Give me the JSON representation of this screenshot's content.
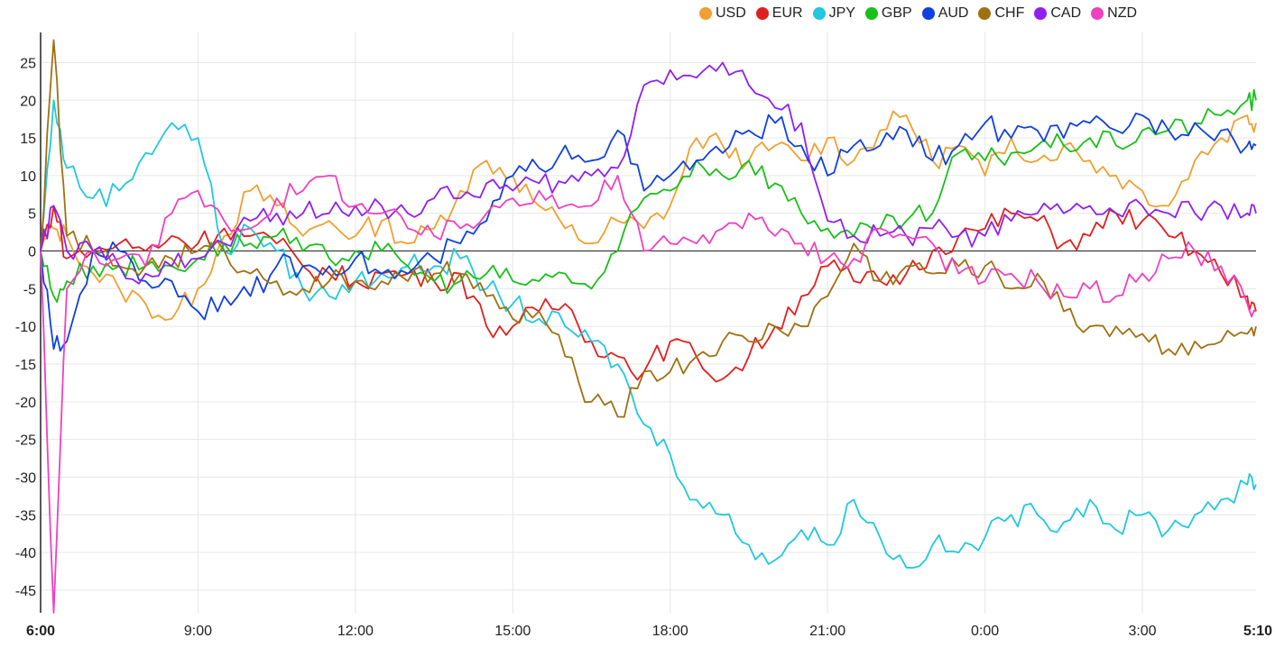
{
  "chart_data": {
    "type": "line",
    "title": "",
    "xlabel": "",
    "ylabel": "",
    "ylim": [
      -48,
      29
    ],
    "grid": true,
    "legend_position": "top-right",
    "y_ticks": [
      25,
      20,
      15,
      10,
      5,
      0,
      -5,
      -10,
      -15,
      -20,
      -25,
      -30,
      -35,
      -40,
      -45
    ],
    "x_ticks": [
      {
        "label": "6:00",
        "hours": 0,
        "bold": true
      },
      {
        "label": "9:00",
        "hours": 3,
        "bold": false
      },
      {
        "label": "12:00",
        "hours": 6,
        "bold": false
      },
      {
        "label": "15:00",
        "hours": 9,
        "bold": false
      },
      {
        "label": "18:00",
        "hours": 12,
        "bold": false
      },
      {
        "label": "21:00",
        "hours": 15,
        "bold": false
      },
      {
        "label": "0:00",
        "hours": 18,
        "bold": false
      },
      {
        "label": "3:00",
        "hours": 21,
        "bold": false
      },
      {
        "label": "5:10",
        "hours": 23.1667,
        "bold": true
      }
    ],
    "x_hours": [
      0,
      0.25,
      0.5,
      1,
      1.5,
      2,
      2.5,
      3,
      3.5,
      4,
      4.5,
      5,
      5.5,
      6,
      6.5,
      7,
      7.5,
      8,
      8.5,
      9,
      9.5,
      10,
      10.5,
      11,
      11.5,
      12,
      12.5,
      13,
      13.5,
      14,
      14.5,
      15,
      15.5,
      16,
      16.5,
      17,
      17.5,
      18,
      18.5,
      19,
      19.5,
      20,
      20.5,
      21,
      21.5,
      22,
      22.5,
      23,
      23.1667
    ],
    "series": [
      {
        "name": "USD",
        "color": "#f0a030",
        "values": [
          0,
          3,
          2,
          -3,
          -5,
          -7,
          -9,
          -5,
          2,
          8,
          6,
          2,
          4,
          2,
          4,
          1,
          3,
          8,
          12,
          10,
          6,
          3,
          1,
          4,
          3,
          6,
          15,
          14,
          12,
          14,
          12,
          15,
          12,
          16,
          18,
          12,
          14,
          10,
          15,
          12,
          14,
          12,
          10,
          8,
          6,
          12,
          15,
          18,
          17
        ]
      },
      {
        "name": "EUR",
        "color": "#e02020",
        "values": [
          0,
          6,
          -1,
          0,
          1,
          0,
          2,
          1,
          3,
          2,
          1,
          -2,
          -3,
          -4,
          -3,
          -3,
          -4,
          -3,
          -10,
          -10,
          -8,
          -7,
          -12,
          -14,
          -16,
          -12,
          -14,
          -17,
          -14,
          -10,
          -6,
          -2,
          -4,
          -4,
          -3,
          0,
          2,
          3,
          5,
          4,
          1,
          2,
          5,
          4,
          2,
          0,
          -3,
          -6,
          -8
        ]
      },
      {
        "name": "JPY",
        "color": "#20c8e0",
        "values": [
          0,
          20,
          11,
          7,
          8,
          13,
          17,
          15,
          0,
          3,
          0,
          -5,
          -6,
          -4,
          -3,
          -2,
          -2,
          -1,
          -5,
          -7,
          -9,
          -10,
          -12,
          -15,
          -23,
          -27,
          -33,
          -35,
          -39,
          -41,
          -37,
          -39,
          -33,
          -38,
          -42,
          -39,
          -40,
          -38,
          -35,
          -35,
          -36,
          -33,
          -37,
          -35,
          -37,
          -35,
          -33,
          -31,
          -31
        ]
      },
      {
        "name": "GBP",
        "color": "#18c018",
        "values": [
          0,
          -6,
          -4,
          -2,
          -2,
          -2,
          -2,
          -1,
          1,
          1,
          2,
          0,
          -1,
          0,
          0,
          -2,
          -4,
          -4,
          -3,
          -4,
          -4,
          -3,
          -5,
          0,
          7,
          8,
          12,
          10,
          12,
          9,
          5,
          3,
          2,
          3,
          4,
          5,
          13,
          12,
          13,
          14,
          14,
          15,
          14,
          16,
          16,
          17,
          18,
          20,
          20
        ]
      },
      {
        "name": "AUD",
        "color": "#1040e0",
        "values": [
          0,
          -13,
          -12,
          0,
          0,
          -4,
          -4,
          -8,
          -6,
          -6,
          -2,
          -2,
          -2,
          -1,
          -3,
          -3,
          -1,
          1,
          4,
          10,
          11,
          14,
          12,
          16,
          8,
          10,
          12,
          13,
          16,
          17,
          14,
          10,
          14,
          14,
          16,
          12,
          14,
          17,
          15,
          16,
          15,
          17,
          16,
          18,
          16,
          17,
          16,
          14,
          14
        ]
      },
      {
        "name": "CHF",
        "color": "#a07010",
        "values": [
          0,
          28,
          2,
          0,
          -2,
          -2,
          -1,
          0,
          0,
          -3,
          -4,
          -5,
          -4,
          -4,
          -4,
          -4,
          -3,
          -3,
          -6,
          -9,
          -8,
          -14,
          -20,
          -22,
          -16,
          -16,
          -14,
          -12,
          -12,
          -10,
          -10,
          -6,
          1,
          -4,
          -2,
          -3,
          -2,
          -2,
          -5,
          -3,
          -8,
          -10,
          -10,
          -11,
          -13,
          -12,
          -12,
          -11,
          -10
        ]
      },
      {
        "name": "CAD",
        "color": "#9020f0",
        "values": [
          0,
          6,
          0,
          0,
          -2,
          -3,
          -2,
          -1,
          1,
          4,
          5,
          5,
          5,
          6,
          6,
          5,
          7,
          7,
          9,
          8,
          9,
          9,
          10,
          11,
          22,
          24,
          23,
          25,
          22,
          19,
          17,
          4,
          2,
          2,
          2,
          3,
          2,
          2,
          4,
          5,
          5,
          6,
          5,
          6,
          5,
          5,
          6,
          5,
          5
        ]
      },
      {
        "name": "NZD",
        "color": "#f040c0",
        "values": [
          0,
          -48,
          -5,
          0,
          -1,
          -2,
          5,
          8,
          4,
          3,
          7,
          8,
          10,
          6,
          5,
          3,
          2,
          3,
          5,
          7,
          8,
          6,
          6,
          10,
          0,
          1,
          1,
          3,
          5,
          2,
          1,
          -1,
          -1,
          3,
          2,
          1,
          -3,
          -4,
          -3,
          -4,
          -6,
          -5,
          -6,
          -3,
          -1,
          0,
          -2,
          -7,
          -8
        ]
      }
    ]
  }
}
